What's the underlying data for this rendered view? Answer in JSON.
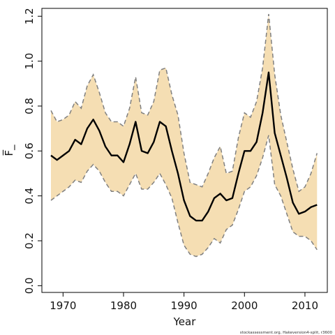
{
  "chart_data": {
    "type": "line",
    "xlabel": "Year",
    "ylabel": "F̅_",
    "xlim": [
      1966.5,
      2013.7
    ],
    "ylim": [
      -0.03,
      1.235
    ],
    "x_ticks": [
      1970,
      1980,
      1990,
      2000,
      2010
    ],
    "y_ticks": [
      0.0,
      0.2,
      0.4,
      0.6,
      0.8,
      1.0,
      1.2
    ],
    "x_tick_labels": [
      "1970",
      "1980",
      "1990",
      "2000",
      "2010"
    ],
    "y_tick_labels": [
      "0.0",
      "0.2",
      "0.4",
      "0.6",
      "0.8",
      "1.0",
      "1.2"
    ],
    "x": [
      1968,
      1969,
      1970,
      1971,
      1972,
      1973,
      1974,
      1975,
      1976,
      1977,
      1978,
      1979,
      1980,
      1981,
      1982,
      1983,
      1984,
      1985,
      1986,
      1987,
      1988,
      1989,
      1990,
      1991,
      1992,
      1993,
      1994,
      1995,
      1996,
      1997,
      1998,
      1999,
      2000,
      2001,
      2002,
      2003,
      2004,
      2005,
      2006,
      2007,
      2008,
      2009,
      2010,
      2011,
      2012
    ],
    "series": [
      {
        "role": "estimate",
        "values": [
          0.58,
          0.56,
          0.58,
          0.6,
          0.65,
          0.63,
          0.7,
          0.74,
          0.69,
          0.62,
          0.58,
          0.58,
          0.55,
          0.63,
          0.73,
          0.6,
          0.59,
          0.64,
          0.73,
          0.71,
          0.6,
          0.5,
          0.38,
          0.31,
          0.29,
          0.29,
          0.33,
          0.39,
          0.41,
          0.38,
          0.39,
          0.5,
          0.6,
          0.6,
          0.64,
          0.77,
          0.95,
          0.68,
          0.58,
          0.48,
          0.37,
          0.32,
          0.33,
          0.35,
          0.36
        ]
      },
      {
        "role": "upper-bound",
        "values": [
          0.78,
          0.73,
          0.74,
          0.76,
          0.82,
          0.79,
          0.89,
          0.94,
          0.86,
          0.77,
          0.73,
          0.73,
          0.71,
          0.79,
          0.93,
          0.77,
          0.76,
          0.82,
          0.96,
          0.97,
          0.85,
          0.76,
          0.59,
          0.46,
          0.45,
          0.44,
          0.5,
          0.57,
          0.62,
          0.5,
          0.51,
          0.66,
          0.77,
          0.75,
          0.82,
          0.97,
          1.21,
          0.94,
          0.76,
          0.64,
          0.52,
          0.42,
          0.44,
          0.5,
          0.59
        ]
      },
      {
        "role": "lower-bound",
        "values": [
          0.38,
          0.4,
          0.42,
          0.44,
          0.47,
          0.46,
          0.51,
          0.54,
          0.51,
          0.46,
          0.42,
          0.42,
          0.4,
          0.45,
          0.5,
          0.43,
          0.43,
          0.46,
          0.5,
          0.45,
          0.39,
          0.28,
          0.18,
          0.14,
          0.13,
          0.14,
          0.17,
          0.21,
          0.19,
          0.25,
          0.27,
          0.34,
          0.42,
          0.44,
          0.49,
          0.57,
          0.67,
          0.45,
          0.4,
          0.32,
          0.24,
          0.22,
          0.22,
          0.2,
          0.16
        ]
      }
    ],
    "grid": false,
    "legend": "none"
  },
  "colors": {
    "band": "#f5deb3",
    "estimate_line": "#000000",
    "bound_line": "#808080",
    "axis": "#000000"
  },
  "footnote": "stockassessment.org, Hakeversion4-split, r3600"
}
